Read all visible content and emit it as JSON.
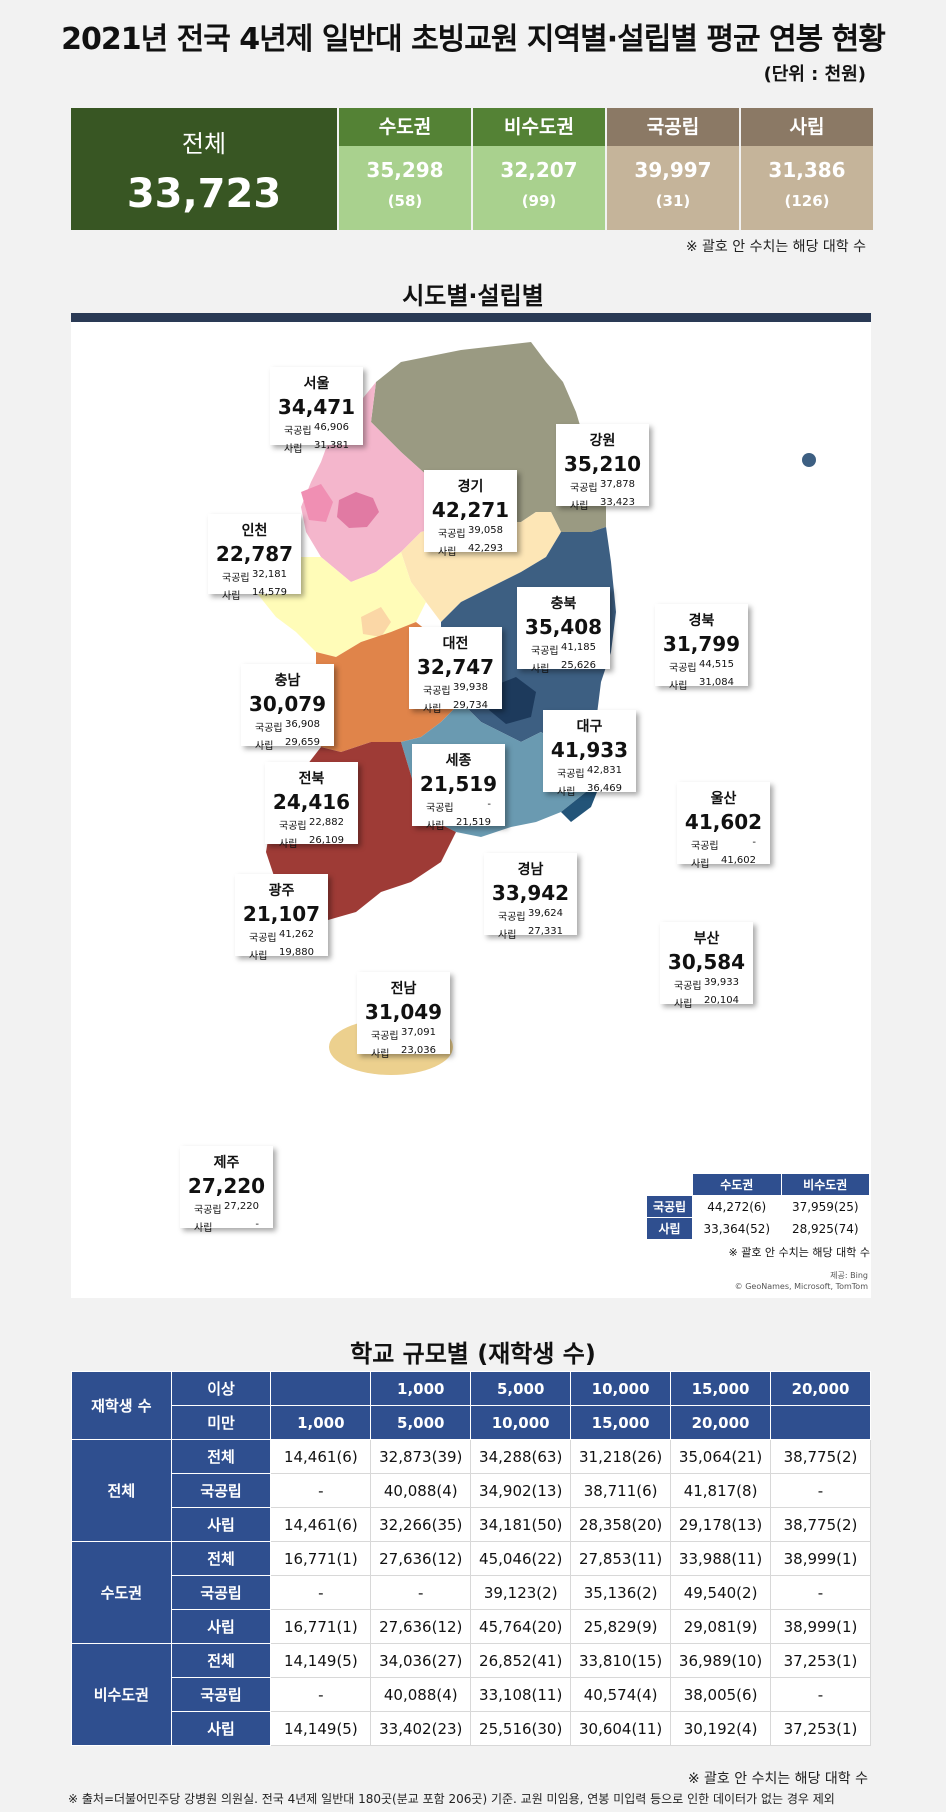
{
  "title": "2021년 전국 4년제 일반대 초빙교원 지역별·설립별 평균 연봉 현황",
  "unit": "(단위 : 천원)",
  "summary": {
    "total_label": "전체",
    "total_value": "33,723",
    "cells": [
      {
        "label": "수도권",
        "value": "35,298",
        "count": "(58)"
      },
      {
        "label": "비수도권",
        "value": "32,207",
        "count": "(99)"
      },
      {
        "label": "국공립",
        "value": "39,997",
        "count": "(31)"
      },
      {
        "label": "사립",
        "value": "31,386",
        "count": "(126)"
      }
    ],
    "note": "※ 괄호 안 수치는 해당 대학 수"
  },
  "map_section": {
    "title": "시도별·설립별",
    "row_labels": {
      "public": "국공립",
      "private": "사립"
    },
    "regions": [
      {
        "name": "서울",
        "total": "34,471",
        "public": "46,906",
        "private": "31,381"
      },
      {
        "name": "인천",
        "total": "22,787",
        "public": "32,181",
        "private": "14,579"
      },
      {
        "name": "경기",
        "total": "42,271",
        "public": "39,058",
        "private": "42,293"
      },
      {
        "name": "강원",
        "total": "35,210",
        "public": "37,878",
        "private": "33,423"
      },
      {
        "name": "충북",
        "total": "35,408",
        "public": "41,185",
        "private": "25,626"
      },
      {
        "name": "경북",
        "total": "31,799",
        "public": "44,515",
        "private": "31,084"
      },
      {
        "name": "충남",
        "total": "30,079",
        "public": "36,908",
        "private": "29,659"
      },
      {
        "name": "대전",
        "total": "32,747",
        "public": "39,938",
        "private": "29,734"
      },
      {
        "name": "대구",
        "total": "41,933",
        "public": "42,831",
        "private": "36,469"
      },
      {
        "name": "세종",
        "total": "21,519",
        "public": "-",
        "private": "21,519"
      },
      {
        "name": "전북",
        "total": "24,416",
        "public": "22,882",
        "private": "26,109"
      },
      {
        "name": "울산",
        "total": "41,602",
        "public": "-",
        "private": "41,602"
      },
      {
        "name": "광주",
        "total": "21,107",
        "public": "41,262",
        "private": "19,880"
      },
      {
        "name": "경남",
        "total": "33,942",
        "public": "39,624",
        "private": "27,331"
      },
      {
        "name": "부산",
        "total": "30,584",
        "public": "39,933",
        "private": "20,104"
      },
      {
        "name": "전남",
        "total": "31,049",
        "public": "37,091",
        "private": "23,036"
      },
      {
        "name": "제주",
        "total": "27,220",
        "public": "27,220",
        "private": "-"
      }
    ],
    "mini_table": {
      "headers": [
        "수도권",
        "비수도권"
      ],
      "rows": [
        {
          "label": "국공립",
          "values": [
            "44,272(6)",
            "37,959(25)"
          ]
        },
        {
          "label": "사립",
          "values": [
            "33,364(52)",
            "28,925(74)"
          ]
        }
      ],
      "note": "※ 괄호 안 수치는 해당 대학 수"
    },
    "credit_line1": "제공: Bing",
    "credit_line2": "© GeoNames, Microsoft, TomTom"
  },
  "size_section": {
    "title": "학교 규모별 (재학생 수)",
    "header_group": "재학생 수",
    "above_label": "이상",
    "below_label": "미만",
    "above": [
      "",
      "1,000",
      "5,000",
      "10,000",
      "15,000",
      "20,000"
    ],
    "below": [
      "1,000",
      "5,000",
      "10,000",
      "15,000",
      "20,000",
      ""
    ],
    "groups": [
      {
        "name": "전체",
        "rows": [
          {
            "label": "전체",
            "values": [
              "14,461(6)",
              "32,873(39)",
              "34,288(63)",
              "31,218(26)",
              "35,064(21)",
              "38,775(2)"
            ]
          },
          {
            "label": "국공립",
            "values": [
              "-",
              "40,088(4)",
              "34,902(13)",
              "38,711(6)",
              "41,817(8)",
              "-"
            ]
          },
          {
            "label": "사립",
            "values": [
              "14,461(6)",
              "32,266(35)",
              "34,181(50)",
              "28,358(20)",
              "29,178(13)",
              "38,775(2)"
            ]
          }
        ]
      },
      {
        "name": "수도권",
        "rows": [
          {
            "label": "전체",
            "values": [
              "16,771(1)",
              "27,636(12)",
              "45,046(22)",
              "27,853(11)",
              "33,988(11)",
              "38,999(1)"
            ]
          },
          {
            "label": "국공립",
            "values": [
              "-",
              "-",
              "39,123(2)",
              "35,136(2)",
              "49,540(2)",
              "-"
            ]
          },
          {
            "label": "사립",
            "values": [
              "16,771(1)",
              "27,636(12)",
              "45,764(20)",
              "25,829(9)",
              "29,081(9)",
              "38,999(1)"
            ]
          }
        ]
      },
      {
        "name": "비수도권",
        "rows": [
          {
            "label": "전체",
            "values": [
              "14,149(5)",
              "34,036(27)",
              "26,852(41)",
              "33,810(15)",
              "36,989(10)",
              "37,253(1)"
            ]
          },
          {
            "label": "국공립",
            "values": [
              "-",
              "40,088(4)",
              "33,108(11)",
              "40,574(4)",
              "38,005(6)",
              "-"
            ]
          },
          {
            "label": "사립",
            "values": [
              "14,149(5)",
              "33,402(23)",
              "25,516(30)",
              "30,604(11)",
              "30,192(4)",
              "37,253(1)"
            ]
          }
        ]
      }
    ],
    "note": "※ 괄호 안 수치는 해당 대학 수"
  },
  "footer": "※ 출처=더불어민주당 강병원 의원실. 전국 4년제 일반대 180곳(분교 포함 206곳) 기준. 교원 미임용, 연봉 미입력 등으로 인한 데이터가 없는 경우 제외"
}
